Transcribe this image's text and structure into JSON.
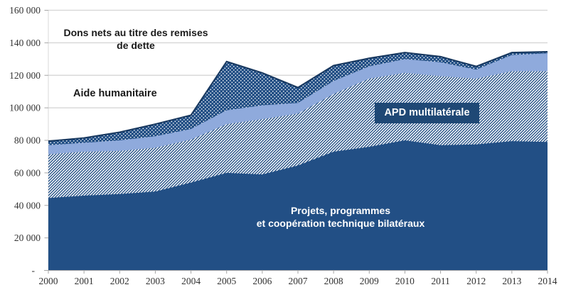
{
  "chart_data": {
    "type": "area",
    "stacked": true,
    "x": [
      2000,
      2001,
      2002,
      2003,
      2004,
      2005,
      2006,
      2007,
      2008,
      2009,
      2010,
      2011,
      2012,
      2013,
      2014
    ],
    "series": [
      {
        "name": "Projets, programmes et coopération technique bilatéraux",
        "style": "solid-navy",
        "values": [
          44500,
          46000,
          47000,
          48500,
          54000,
          60000,
          59000,
          64500,
          73000,
          76000,
          80000,
          77000,
          77500,
          79500,
          79000
        ]
      },
      {
        "name": "APD multilatérale",
        "style": "diagonal-hatch",
        "values": [
          27000,
          27000,
          26500,
          27000,
          26500,
          30000,
          34000,
          32000,
          35500,
          42000,
          41500,
          42500,
          40500,
          43000,
          43500
        ]
      },
      {
        "name": "Aide humanitaire",
        "style": "solid-light-blue",
        "values": [
          5500,
          5500,
          6500,
          7000,
          6500,
          8500,
          8500,
          6500,
          8000,
          7500,
          8500,
          8500,
          5500,
          10000,
          11000
        ]
      },
      {
        "name": "Dons nets au titre des remises de dette",
        "style": "dots-on-navy",
        "values": [
          2500,
          3000,
          5000,
          7500,
          8500,
          30000,
          20000,
          9500,
          9500,
          5000,
          4000,
          3500,
          2000,
          1500,
          1000
        ]
      }
    ],
    "xlim": [
      2000,
      2014
    ],
    "ylim": [
      0,
      160000
    ],
    "ytick_interval": 20000,
    "ytick_labels": [
      "-",
      "20 000",
      "40 000",
      "60 000",
      "80 000",
      "100 000",
      "120 000",
      "140 000",
      "160 000"
    ],
    "grid": "horizontal",
    "legend": "none (series labelled by on-chart annotations)",
    "title": "",
    "xlabel": "",
    "ylabel": ""
  },
  "annotations": {
    "debt_line1": "Dons nets au titre des remises",
    "debt_line2": "de dette",
    "humanitarian": "Aide humanitaire",
    "multilateral": "APD multilatérale",
    "bilateral_line1": "Projets, programmes",
    "bilateral_line2": "et coopération technique bilatéraux"
  },
  "colors": {
    "navy": "#224F85",
    "navy_dark": "#17375E",
    "light_blue": "#8FAADC",
    "box_navy": "#1F4875",
    "gridline": "#D9D9D9",
    "axis_line": "#A6A6A6",
    "tick_text": "#333333",
    "text_dark": "#1A1A1A",
    "text_light": "#FFFFFF"
  }
}
